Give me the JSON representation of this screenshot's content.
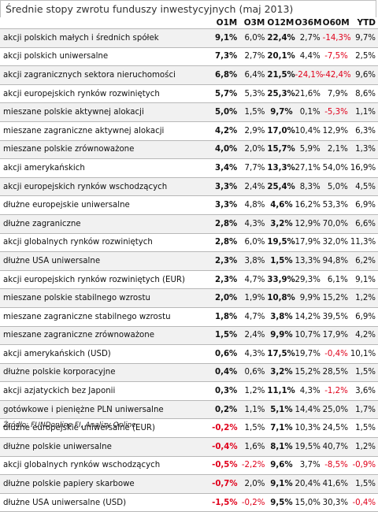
{
  "title": "Średnie stopy zwrotu funduszy inwestycyjnych (maj 2013)",
  "columns": [
    "O1M",
    "O3M",
    "O12M",
    "O36M",
    "O60M",
    "YTD"
  ],
  "rows": [
    {
      "name": "akcji polskich małych i średnich spółek",
      "values": [
        "9,1%",
        "6,0%",
        "22,4%",
        "2,7%",
        "-14,3%",
        "9,7%"
      ]
    },
    {
      "name": "akcji polskich uniwersalne",
      "values": [
        "7,3%",
        "2,7%",
        "20,1%",
        "4,4%",
        "-7,5%",
        "2,5%"
      ]
    },
    {
      "name": "akcji zagranicznych sektora nieruchomości",
      "values": [
        "6,8%",
        "6,4%",
        "21,5%",
        "-24,1%",
        "-42,4%",
        "9,6%"
      ]
    },
    {
      "name": "akcji europejskich rynków rozwiniętych",
      "values": [
        "5,7%",
        "5,3%",
        "25,3%",
        "21,6%",
        "7,9%",
        "8,6%"
      ]
    },
    {
      "name": "mieszane polskie aktywnej alokacji",
      "values": [
        "5,0%",
        "1,5%",
        "9,7%",
        "0,1%",
        "-5,3%",
        "1,1%"
      ]
    },
    {
      "name": "mieszane zagraniczne aktywnej alokacji",
      "values": [
        "4,2%",
        "2,9%",
        "17,0%",
        "10,4%",
        "12,9%",
        "6,3%"
      ]
    },
    {
      "name": "mieszane polskie zrównoważone",
      "values": [
        "4,0%",
        "2,0%",
        "15,7%",
        "5,9%",
        "2,1%",
        "1,3%"
      ]
    },
    {
      "name": "akcji amerykańskich",
      "values": [
        "3,4%",
        "7,7%",
        "13,3%",
        "27,1%",
        "54,0%",
        "16,9%"
      ]
    },
    {
      "name": "akcji europejskich rynków wschodzących",
      "values": [
        "3,3%",
        "2,4%",
        "25,4%",
        "8,3%",
        "5,0%",
        "4,5%"
      ]
    },
    {
      "name": "dłużne europejskie uniwersalne",
      "values": [
        "3,3%",
        "4,8%",
        "4,6%",
        "16,2%",
        "53,3%",
        "6,9%"
      ]
    },
    {
      "name": "dłużne zagraniczne",
      "values": [
        "2,8%",
        "4,3%",
        "3,2%",
        "12,9%",
        "70,0%",
        "6,6%"
      ]
    },
    {
      "name": "akcji globalnych rynków rozwiniętych",
      "values": [
        "2,8%",
        "6,0%",
        "19,5%",
        "17,9%",
        "32,0%",
        "11,3%"
      ]
    },
    {
      "name": "dłużne USA uniwersalne",
      "values": [
        "2,3%",
        "3,8%",
        "1,5%",
        "13,3%",
        "94,8%",
        "6,2%"
      ]
    },
    {
      "name": "akcji europejskich rynków rozwiniętych (EUR)",
      "values": [
        "2,3%",
        "4,7%",
        "33,9%",
        "29,3%",
        "6,1%",
        "9,1%"
      ]
    },
    {
      "name": "mieszane polskie stabilnego wzrostu",
      "values": [
        "2,0%",
        "1,9%",
        "10,8%",
        "9,9%",
        "15,2%",
        "1,2%"
      ]
    },
    {
      "name": "mieszane zagraniczne stabilnego wzrostu",
      "values": [
        "1,8%",
        "4,7%",
        "3,8%",
        "14,2%",
        "39,5%",
        "6,9%"
      ]
    },
    {
      "name": "mieszane zagraniczne zrównoważone",
      "values": [
        "1,5%",
        "2,4%",
        "9,9%",
        "10,7%",
        "17,9%",
        "4,2%"
      ]
    },
    {
      "name": "akcji amerykańskich (USD)",
      "values": [
        "0,6%",
        "4,3%",
        "17,5%",
        "19,7%",
        "-0,4%",
        "10,1%"
      ]
    },
    {
      "name": "dłużne polskie korporacyjne",
      "values": [
        "0,4%",
        "0,6%",
        "3,2%",
        "15,2%",
        "28,5%",
        "1,5%"
      ]
    },
    {
      "name": "akcji azjatyckich bez Japonii",
      "values": [
        "0,3%",
        "1,2%",
        "11,1%",
        "4,3%",
        "-1,2%",
        "3,6%"
      ]
    },
    {
      "name": "gotówkowe i pieniężne PLN uniwersalne",
      "values": [
        "0,2%",
        "1,1%",
        "5,1%",
        "14,4%",
        "25,0%",
        "1,7%"
      ]
    },
    {
      "name": "dłużne europejskie uniwersalne (EUR)",
      "values": [
        "-0,2%",
        "1,5%",
        "7,1%",
        "10,3%",
        "24,5%",
        "1,5%"
      ]
    },
    {
      "name": "dłużne polskie uniwersalne",
      "values": [
        "-0,4%",
        "1,6%",
        "8,1%",
        "19,5%",
        "40,7%",
        "1,2%"
      ]
    },
    {
      "name": "akcji globalnych rynków wschodzących",
      "values": [
        "-0,5%",
        "-2,2%",
        "9,6%",
        "3,7%",
        "-8,5%",
        "-0,9%"
      ]
    },
    {
      "name": "dłużne polskie papiery skarbowe",
      "values": [
        "-0,7%",
        "2,0%",
        "9,1%",
        "20,4%",
        "41,6%",
        "1,5%"
      ]
    },
    {
      "name": "dłużne USA uniwersalne (USD)",
      "values": [
        "-1,5%",
        "-0,2%",
        "9,5%",
        "15,0%",
        "30,3%",
        "-0,4%"
      ]
    }
  ],
  "source": "Źródło: FUNDonline FI, Analizy Online"
}
